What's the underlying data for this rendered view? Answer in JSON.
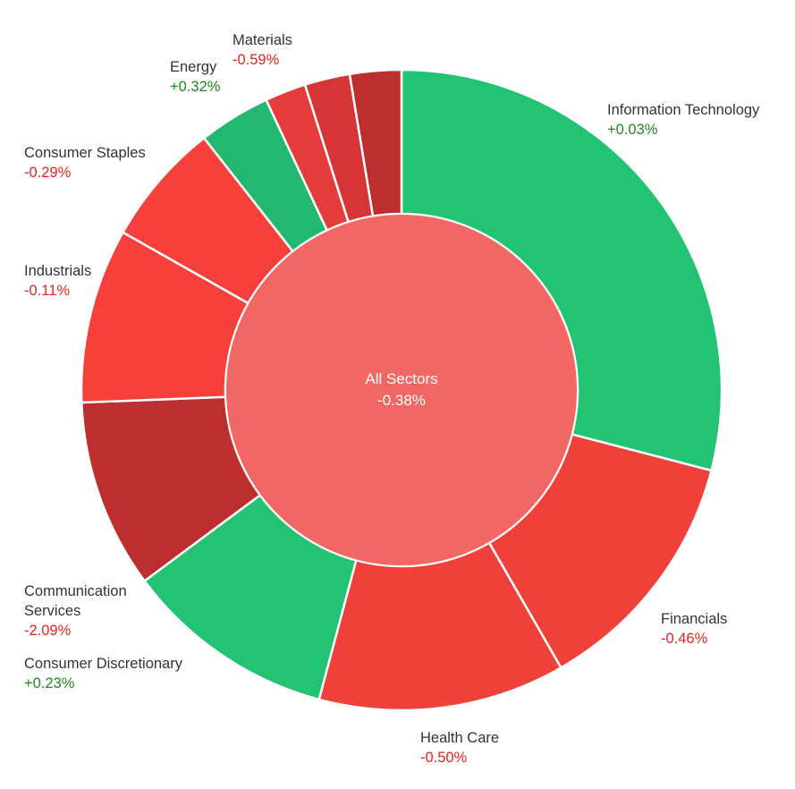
{
  "chart_data": {
    "type": "pie",
    "variant": "sunburst-donut",
    "center": {
      "label": "All Sectors",
      "change": "-0.38%"
    },
    "sectors": [
      {
        "name": "Information Technology",
        "change": "+0.03%",
        "weight": 28.0,
        "color": "#22c373"
      },
      {
        "name": "Financials",
        "change": "-0.46%",
        "weight": 12.2,
        "color": "#ef4039"
      },
      {
        "name": "Health Care",
        "change": "-0.50%",
        "weight": 12.0,
        "color": "#ef4039"
      },
      {
        "name": "Consumer Discretionary",
        "change": "+0.23%",
        "weight": 10.3,
        "color": "#22c373"
      },
      {
        "name": "Communication Services",
        "change": "-2.09%",
        "weight": 9.2,
        "color": "#bd2e2e"
      },
      {
        "name": "Industrials",
        "change": "-0.11%",
        "weight": 8.5,
        "color": "#f7403c"
      },
      {
        "name": "Consumer Staples",
        "change": "-0.29%",
        "weight": 6.0,
        "color": "#f7403c"
      },
      {
        "name": "Energy",
        "change": "+0.32%",
        "weight": 3.5,
        "color": "#22b870"
      },
      {
        "name": "",
        "change": "",
        "weight": 2.0,
        "color": "#e63b3b"
      },
      {
        "name": "Materials",
        "change": "-0.59%",
        "weight": 2.2,
        "color": "#d63535"
      },
      {
        "name": "",
        "change": "",
        "weight": 2.5,
        "color": "#bd2e2e"
      }
    ],
    "colors": {
      "center_fill": "#f26763",
      "positive_text": "#1e8a1e",
      "negative_text": "#e8231f",
      "label_text": "#333333",
      "center_text": "#ffffff",
      "separator": "#ffffff"
    }
  }
}
